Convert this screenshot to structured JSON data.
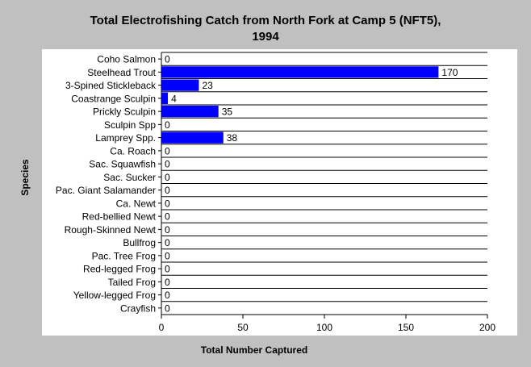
{
  "chart_data": {
    "type": "bar",
    "orientation": "horizontal",
    "title": "Total Electrofishing Catch from North Fork at Camp 5 (NFT5),",
    "subtitle": "1994",
    "xlabel": "Total Number Captured",
    "ylabel": "Species",
    "xlim": [
      0,
      200
    ],
    "xticks": [
      0,
      50,
      100,
      150,
      200
    ],
    "grid": "horizontal lines between categories",
    "legend": "none",
    "bar_color": "#0000ff",
    "background_color": "#c0c0c0",
    "plot_background_color": "#ffffff",
    "categories": [
      "Coho Salmon",
      "Steelhead Trout",
      "3-Spined Stickleback",
      "Coastrange Sculpin",
      "Prickly Sculpin",
      "Sculpin Spp",
      "Lamprey Spp.",
      "Ca. Roach",
      "Sac. Squawfish",
      "Sac. Sucker",
      "Pac. Giant Salamander",
      "Ca. Newt",
      "Red-bellied Newt",
      "Rough-Skinned Newt",
      "Bullfrog",
      "Pac. Tree Frog",
      "Red-legged Frog",
      "Tailed Frog",
      "Yellow-legged Frog",
      "Crayfish"
    ],
    "values": [
      0,
      170,
      23,
      4,
      35,
      0,
      38,
      0,
      0,
      0,
      0,
      0,
      0,
      0,
      0,
      0,
      0,
      0,
      0,
      0
    ]
  }
}
